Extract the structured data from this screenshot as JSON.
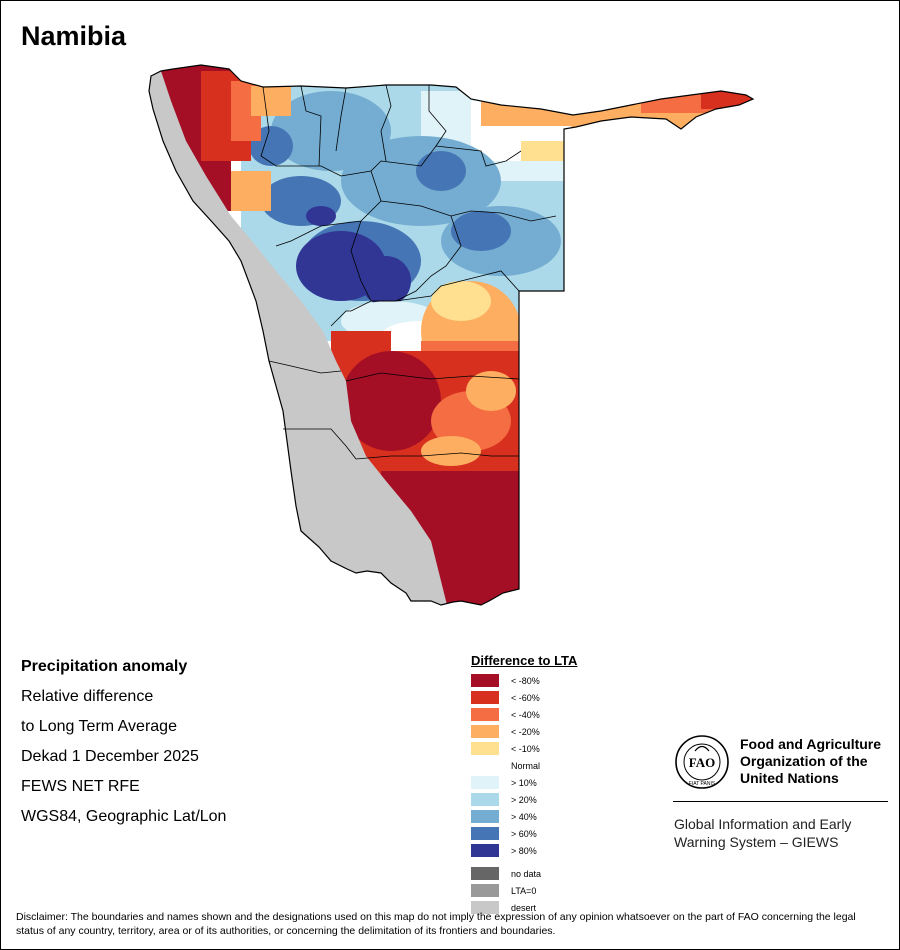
{
  "map": {
    "title": "Namibia"
  },
  "info": {
    "lines": [
      "Precipitation anomaly",
      "Relative difference",
      "to Long Term Average",
      "Dekad 1 December 2025",
      "FEWS NET RFE",
      "WGS84, Geographic Lat/Lon"
    ]
  },
  "legend": {
    "title": "Difference to LTA",
    "items": [
      {
        "label": "< -80%",
        "color": "#a50f26"
      },
      {
        "label": "< -60%",
        "color": "#d7301f"
      },
      {
        "label": "< -40%",
        "color": "#f46d43"
      },
      {
        "label": "< -20%",
        "color": "#fdae61"
      },
      {
        "label": "< -10%",
        "color": "#fee090"
      },
      {
        "label": "Normal",
        "color": "#ffffff"
      },
      {
        "label": "> 10%",
        "color": "#e0f3f8"
      },
      {
        "label": "> 20%",
        "color": "#abd9e9"
      },
      {
        "label": "> 40%",
        "color": "#74add1"
      },
      {
        "label": "> 60%",
        "color": "#4575b4"
      },
      {
        "label": "> 80%",
        "color": "#313695"
      }
    ],
    "extra": [
      {
        "label": "no data",
        "color": "#666666"
      },
      {
        "label": "LTA=0",
        "color": "#999999"
      },
      {
        "label": "desert",
        "color": "#c8c8c8"
      }
    ]
  },
  "fao": {
    "org_lines": [
      "Food and Agriculture",
      "Organization of the",
      "United Nations"
    ],
    "giews_lines": [
      "Global Information and Early",
      "Warning System – GIEWS"
    ],
    "logo_letters": "FAO",
    "logo_motto": "FIAT PANIS"
  },
  "disclaimer": "Disclaimer: The boundaries and names shown and the designations used on this map do not imply the expression of any opinion whatsoever on the part of FAO concerning the legal status of any country, territory, area or of its authorities, or concerning the delimitation of its frontiers and boundaries."
}
